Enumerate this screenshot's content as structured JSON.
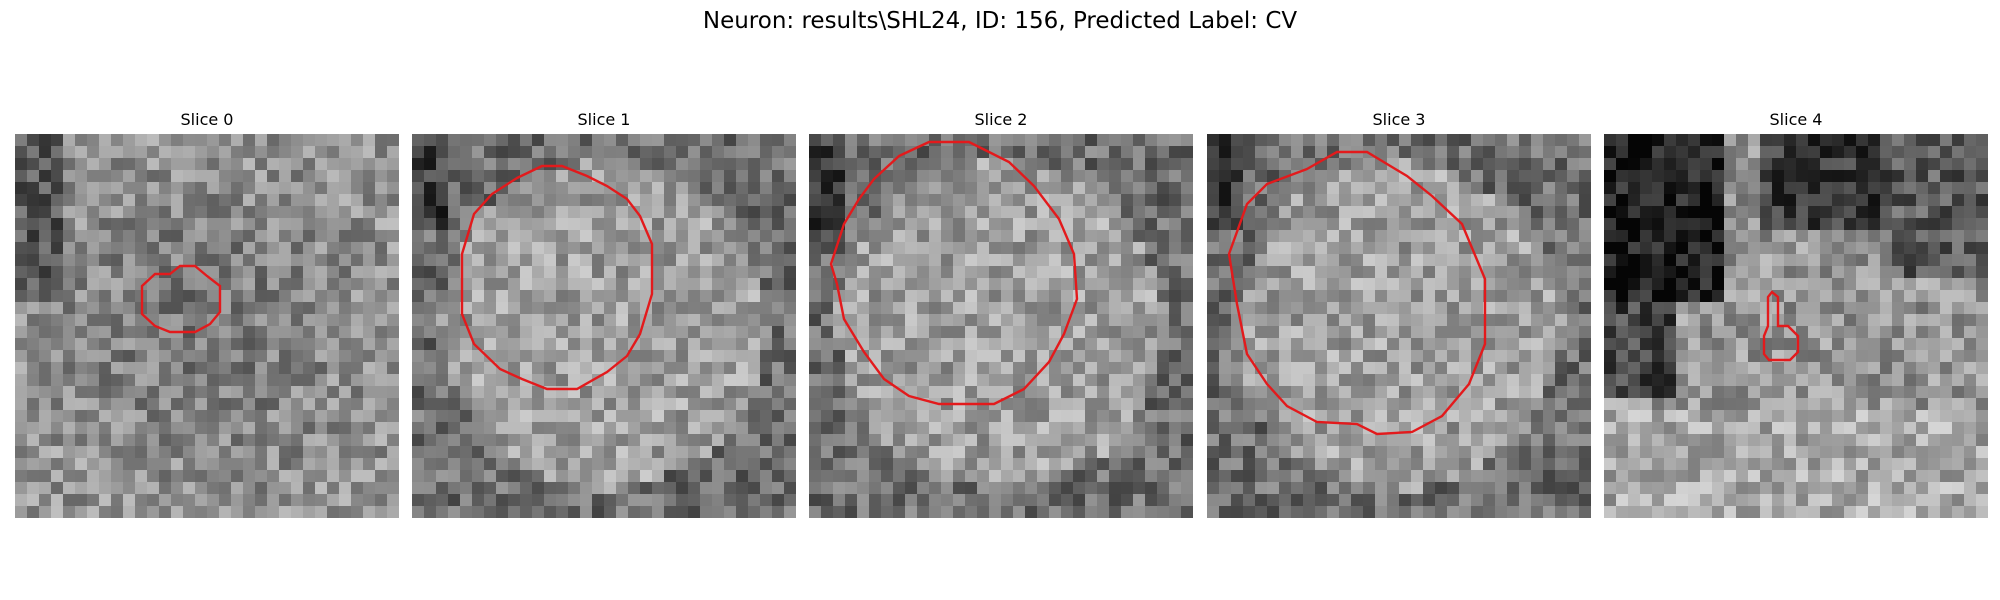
{
  "figure": {
    "title": "Neuron: results\\SHL24, ID: 156, Predicted Label: CV",
    "contour_color": "#e31a1c"
  },
  "slices": [
    {
      "title": "Slice 0",
      "seed": 11,
      "tone": "lightvar",
      "contour": "small-octagon"
    },
    {
      "title": "Slice 1",
      "seed": 23,
      "tone": "mid",
      "contour": "large-octagon"
    },
    {
      "title": "Slice 2",
      "seed": 37,
      "tone": "mid",
      "contour": "large-octagon-2"
    },
    {
      "title": "Slice 3",
      "seed": 51,
      "tone": "mid",
      "contour": "large-octagon-3"
    },
    {
      "title": "Slice 4",
      "seed": 67,
      "tone": "dark-top",
      "contour": "keyhole"
    }
  ]
}
